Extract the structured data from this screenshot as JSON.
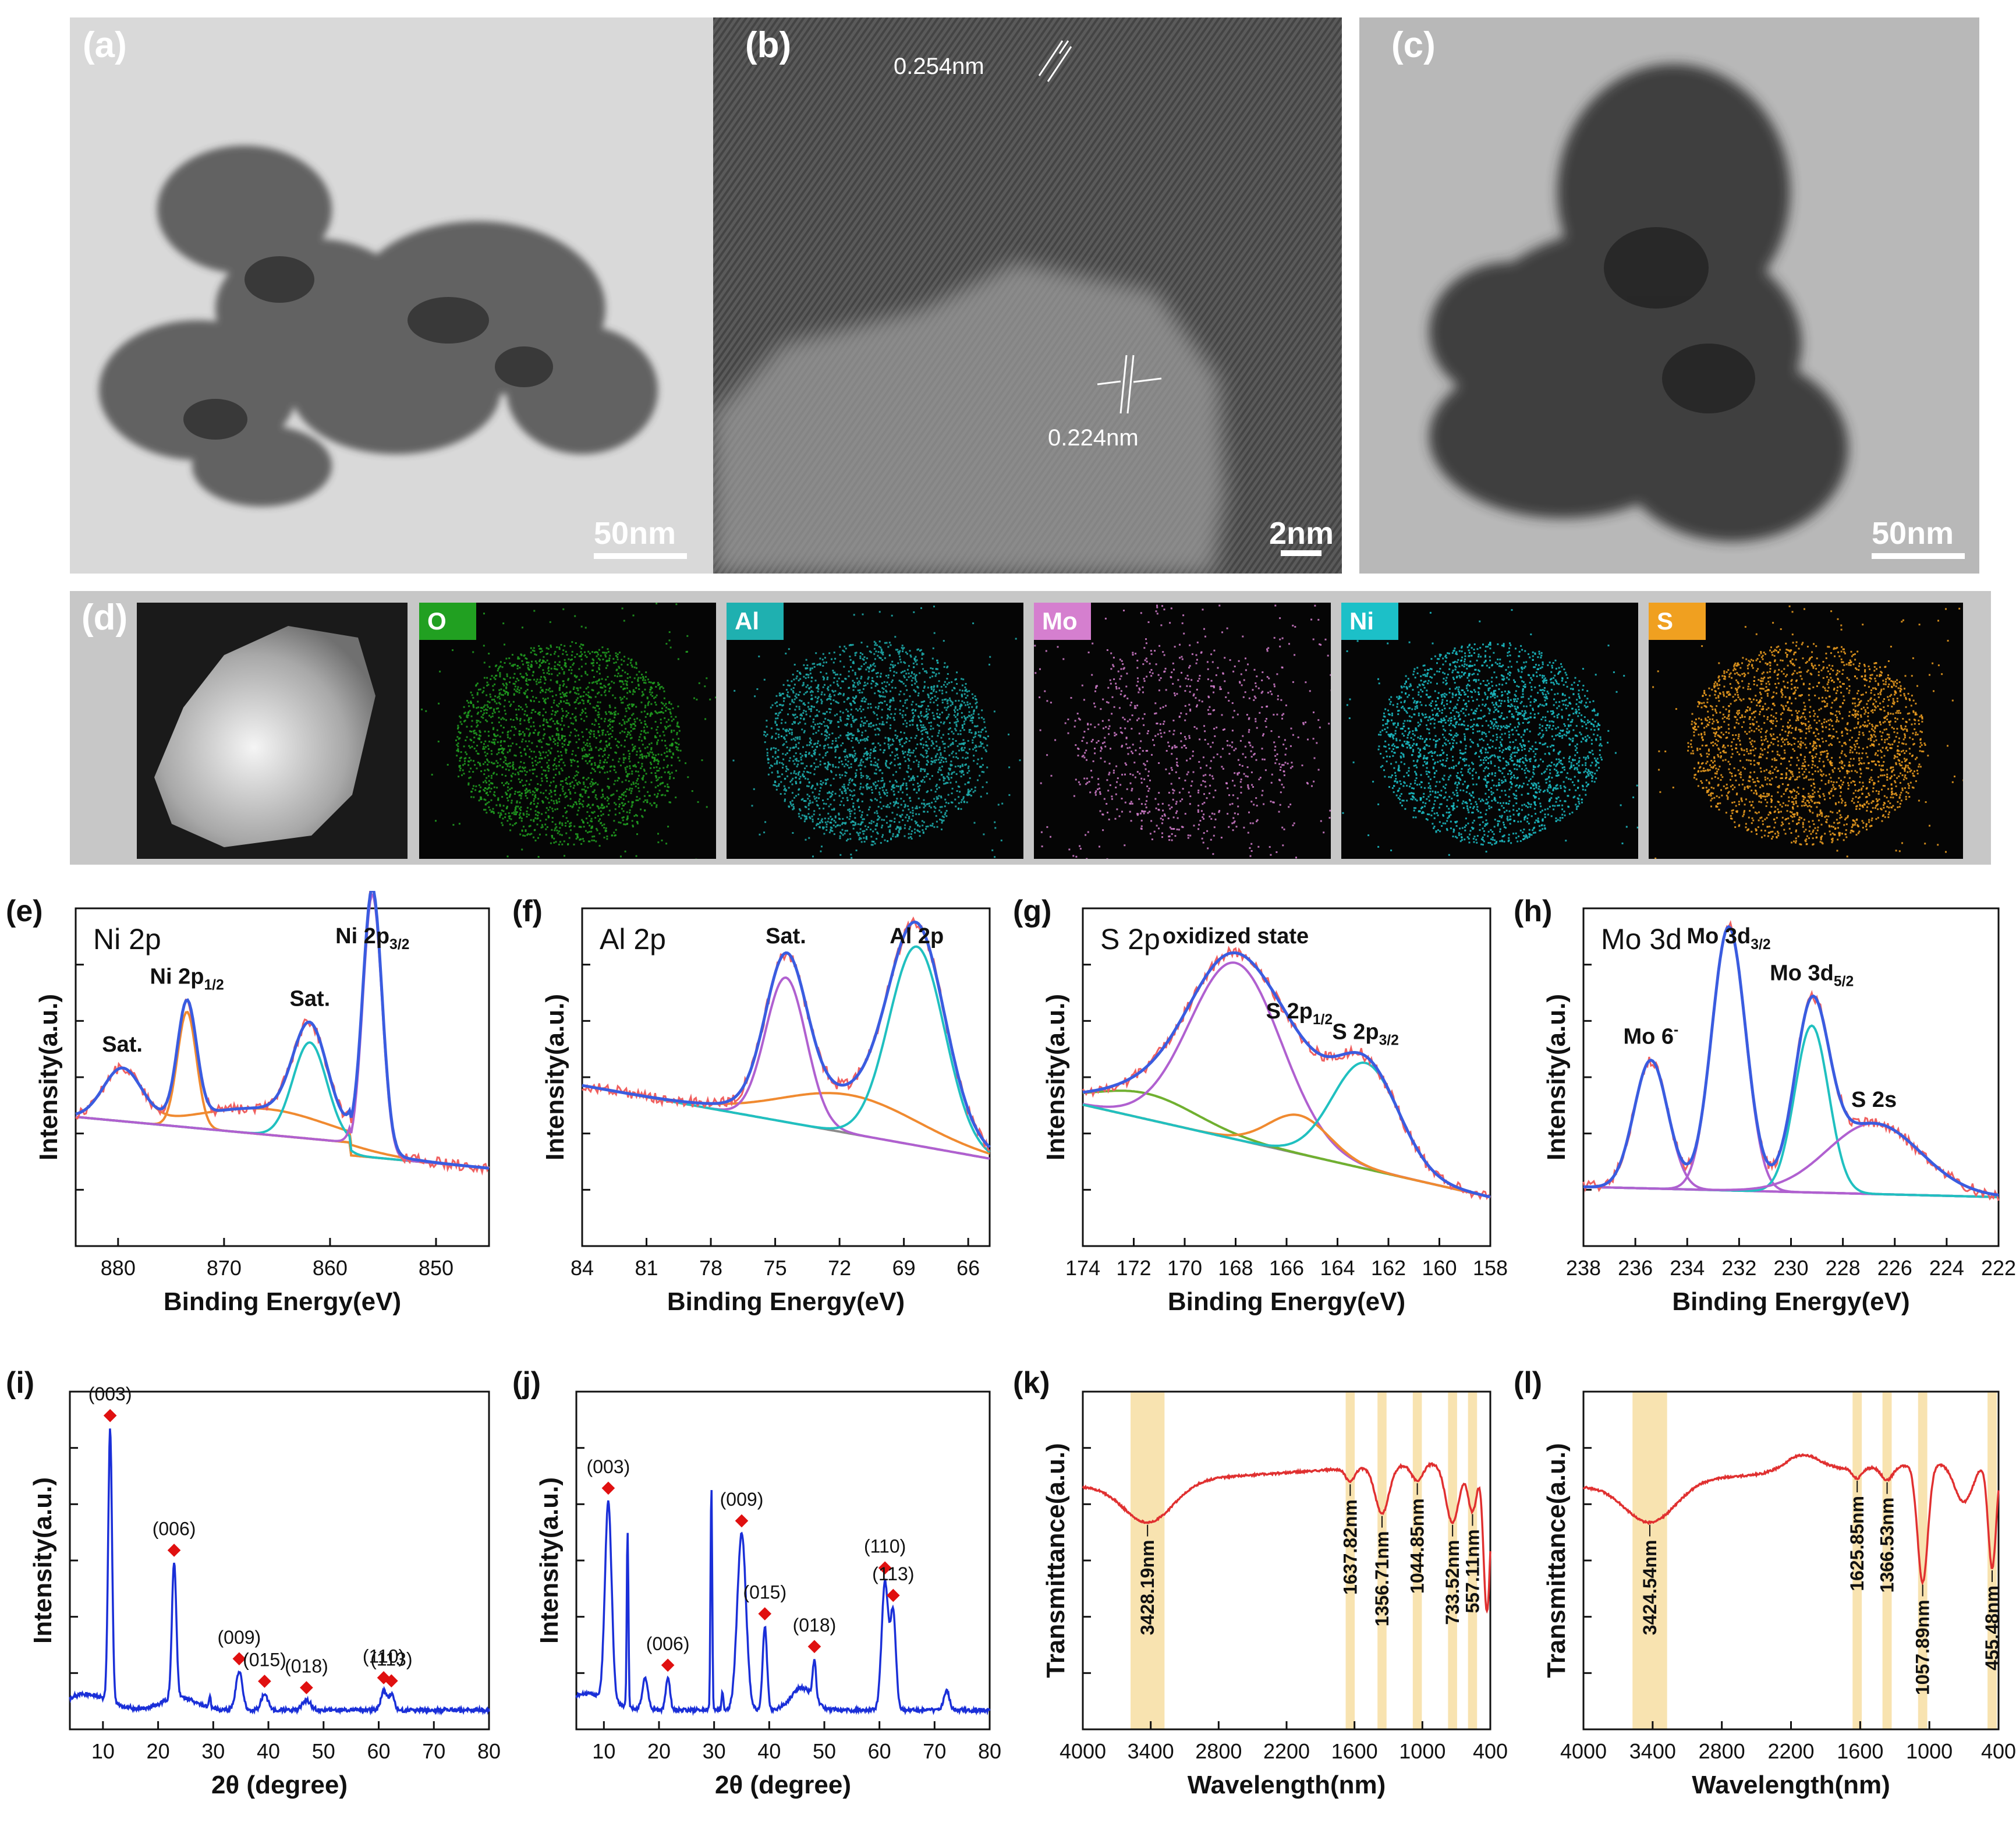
{
  "panels": {
    "a": {
      "label": "(a)",
      "scale": "50nm"
    },
    "b": {
      "label": "(b)",
      "scale": "2nm",
      "spacing_top": "0.254nm",
      "spacing_bottom": "0.224nm"
    },
    "c": {
      "label": "(c)",
      "scale": "50nm"
    },
    "d": {
      "label": "(d)",
      "elements": [
        {
          "name": "O",
          "color": "#21a021"
        },
        {
          "name": "Al",
          "color": "#1fb0b0"
        },
        {
          "name": "Mo",
          "color": "#d57fcf"
        },
        {
          "name": "Ni",
          "color": "#1cc0c8"
        },
        {
          "name": "S",
          "color": "#f0a020"
        }
      ]
    },
    "e": {
      "label": "(e)"
    },
    "f": {
      "label": "(f)"
    },
    "g": {
      "label": "(g)"
    },
    "h": {
      "label": "(h)"
    },
    "i": {
      "label": "(i)"
    },
    "j": {
      "label": "(j)"
    },
    "k": {
      "label": "(k)"
    },
    "l": {
      "label": "(l)"
    }
  },
  "colors": {
    "raw": "#f06060",
    "envelope": "#3a5ce0",
    "background": "#8a8a8a",
    "comp_orange": "#f08a30",
    "comp_teal": "#20c0c0",
    "comp_purple": "#b060d0",
    "comp_green": "#70b030",
    "xrd": "#1a2fd8",
    "ir": "#e03030",
    "band": "#f8e3b0",
    "marker": "#e01010"
  },
  "chart_data": [
    {
      "id": "e",
      "type": "line",
      "title": "Ni 2p",
      "xlabel": "Binding Energy(eV)",
      "ylabel": "Intensity(a.u.)",
      "xlim": [
        884,
        845
      ],
      "xticks": [
        880,
        870,
        860,
        850
      ],
      "peaks": [
        {
          "x": 879.6,
          "label": "Sat."
        },
        {
          "x": 873.5,
          "label": "Ni 2p",
          "sub": "1/2"
        },
        {
          "x": 861.9,
          "label": "Sat."
        },
        {
          "x": 856.0,
          "label": "Ni 2p",
          "sub": "3/2"
        }
      ]
    },
    {
      "id": "f",
      "type": "line",
      "title": "Al 2p",
      "xlabel": "Binding Energy(eV)",
      "ylabel": "Intensity(a.u.)",
      "xlim": [
        84,
        65
      ],
      "xticks": [
        84,
        81,
        78,
        75,
        72,
        69,
        66
      ],
      "peaks": [
        {
          "x": 74.5,
          "label": "Sat."
        },
        {
          "x": 68.4,
          "label": "Al 2p"
        }
      ]
    },
    {
      "id": "g",
      "type": "line",
      "title": "S 2p",
      "xlabel": "Binding Energy(eV)",
      "ylabel": "Intensity(a.u.)",
      "xlim": [
        174,
        158
      ],
      "xticks": [
        174,
        172,
        170,
        168,
        166,
        164,
        162,
        160,
        158
      ],
      "peaks": [
        {
          "x": 168.0,
          "label": "oxidized state"
        },
        {
          "x": 165.5,
          "label": "S 2p",
          "sub": "1/2"
        },
        {
          "x": 162.9,
          "label": "S 2p",
          "sub": "3/2"
        }
      ]
    },
    {
      "id": "h",
      "type": "line",
      "title": "Mo 3d",
      "xlabel": "Binding Energy(eV)",
      "ylabel": "Intensity(a.u.)",
      "xlim": [
        238,
        222
      ],
      "xticks": [
        238,
        236,
        234,
        232,
        230,
        228,
        226,
        224,
        222
      ],
      "peaks": [
        {
          "x": 235.4,
          "label": "Mo 6",
          "sup": "-"
        },
        {
          "x": 232.4,
          "label": "Mo 3d",
          "sub": "3/2"
        },
        {
          "x": 229.2,
          "label": "Mo 3d",
          "sub": "5/2"
        },
        {
          "x": 226.8,
          "label": "S 2s"
        }
      ]
    },
    {
      "id": "i",
      "type": "line",
      "xlabel": "2θ (degree)",
      "ylabel": "Intensity(a.u.)",
      "xlim": [
        4,
        80
      ],
      "xticks": [
        10,
        20,
        30,
        40,
        50,
        60,
        70,
        80
      ],
      "peaks": [
        {
          "x": 11.3,
          "label": "(003)"
        },
        {
          "x": 22.9,
          "label": "(006)"
        },
        {
          "x": 34.7,
          "label": "(009)"
        },
        {
          "x": 39.3,
          "label": "(015)"
        },
        {
          "x": 46.9,
          "label": "(018)"
        },
        {
          "x": 60.9,
          "label": "(110)"
        },
        {
          "x": 62.3,
          "label": "(113)"
        }
      ]
    },
    {
      "id": "j",
      "type": "line",
      "xlabel": "2θ (degree)",
      "ylabel": "Intensity(a.u.)",
      "xlim": [
        5,
        80
      ],
      "xticks": [
        10,
        20,
        30,
        40,
        50,
        60,
        70,
        80
      ],
      "peaks": [
        {
          "x": 10.8,
          "label": "(003)"
        },
        {
          "x": 21.6,
          "label": "(006)"
        },
        {
          "x": 35.0,
          "label": "(009)"
        },
        {
          "x": 39.2,
          "label": "(015)"
        },
        {
          "x": 48.2,
          "label": "(018)"
        },
        {
          "x": 61.0,
          "label": "(110)"
        },
        {
          "x": 62.5,
          "label": "(113)"
        }
      ]
    },
    {
      "id": "k",
      "type": "line",
      "xlabel": "Wavelength(nm)",
      "ylabel": "Transmittance(a.u.)",
      "xlim": [
        4000,
        400
      ],
      "xticks": [
        4000,
        3400,
        2800,
        2200,
        1600,
        1000,
        400
      ],
      "peaks": [
        {
          "x": 3428.19,
          "label": "3428.19nm"
        },
        {
          "x": 1637.82,
          "label": "1637.82nm"
        },
        {
          "x": 1356.71,
          "label": "1356.71nm"
        },
        {
          "x": 1044.85,
          "label": "1044.85nm"
        },
        {
          "x": 733.52,
          "label": "733.52nm"
        },
        {
          "x": 557.11,
          "label": "557.11nm"
        }
      ]
    },
    {
      "id": "l",
      "type": "line",
      "xlabel": "Wavelength(nm)",
      "ylabel": "Transmittance(a.u.)",
      "xlim": [
        4000,
        400
      ],
      "xticks": [
        4000,
        3400,
        2800,
        2200,
        1600,
        1000,
        400
      ],
      "peaks": [
        {
          "x": 3424.54,
          "label": "3424.54nm"
        },
        {
          "x": 1625.85,
          "label": "1625.85nm"
        },
        {
          "x": 1366.53,
          "label": "1366.53nm"
        },
        {
          "x": 1057.89,
          "label": "1057.89nm"
        },
        {
          "x": 455.48,
          "label": "455.48nm"
        }
      ]
    }
  ]
}
